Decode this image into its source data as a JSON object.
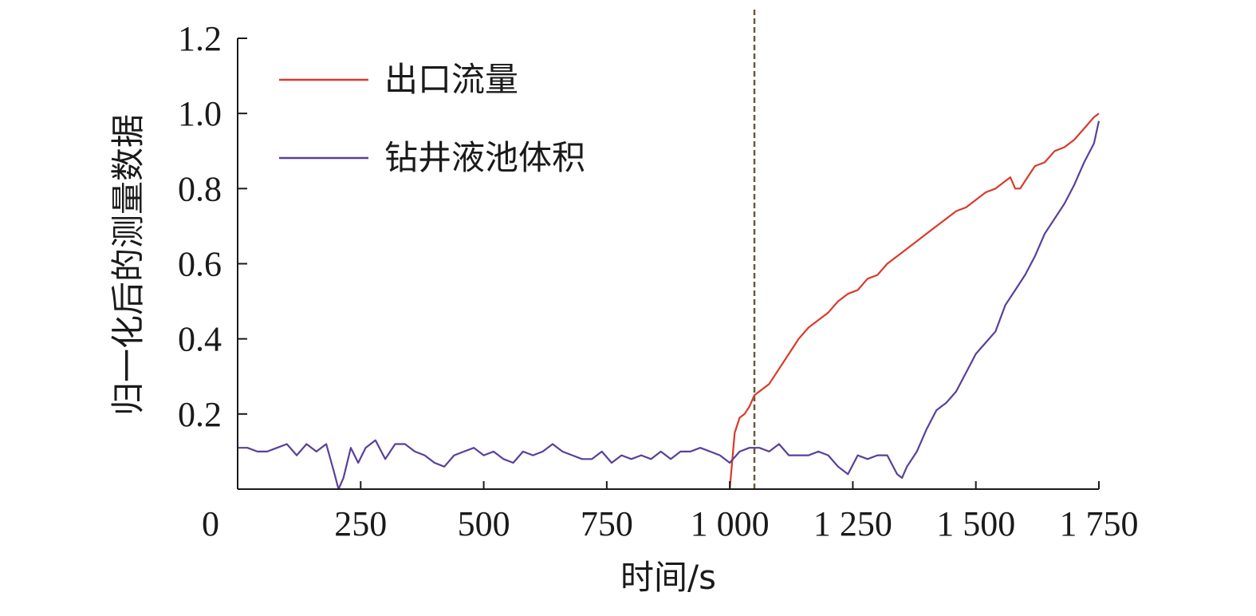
{
  "chart_data": {
    "type": "line",
    "title": "",
    "xlabel": "时间/s",
    "ylabel": "归一化后的测量数据",
    "xlim": [
      0,
      1750
    ],
    "ylim": [
      0,
      1.2
    ],
    "x_ticks": [
      0,
      250,
      500,
      750,
      1000,
      1250,
      1500,
      1750
    ],
    "x_tick_labels": [
      "0",
      "250",
      "500",
      "750",
      "1 000",
      "1 250",
      "1 500",
      "1 750"
    ],
    "y_ticks": [
      0.2,
      0.4,
      0.6,
      0.8,
      1.0,
      1.2
    ],
    "y_tick_labels": [
      "0.2",
      "0.4",
      "0.6",
      "0.8",
      "1.0",
      "1.2"
    ],
    "grid": false,
    "legend_position": "top-left",
    "vertical_marker_x": 1050,
    "vertical_marker_color": "#6b5a3a",
    "series": [
      {
        "name": "出口流量",
        "color": "#d93a2b",
        "x": [
          1000,
          1010,
          1020,
          1030,
          1040,
          1050,
          1060,
          1080,
          1100,
          1120,
          1140,
          1160,
          1180,
          1200,
          1220,
          1240,
          1260,
          1280,
          1300,
          1320,
          1340,
          1360,
          1380,
          1400,
          1420,
          1440,
          1460,
          1480,
          1500,
          1520,
          1540,
          1560,
          1570,
          1580,
          1590,
          1600,
          1620,
          1640,
          1660,
          1680,
          1700,
          1720,
          1740,
          1750
        ],
        "y": [
          0.0,
          0.15,
          0.19,
          0.2,
          0.22,
          0.25,
          0.26,
          0.28,
          0.32,
          0.36,
          0.4,
          0.43,
          0.45,
          0.47,
          0.5,
          0.52,
          0.53,
          0.56,
          0.57,
          0.6,
          0.62,
          0.64,
          0.66,
          0.68,
          0.7,
          0.72,
          0.74,
          0.75,
          0.77,
          0.79,
          0.8,
          0.82,
          0.83,
          0.8,
          0.8,
          0.82,
          0.86,
          0.87,
          0.9,
          0.91,
          0.93,
          0.96,
          0.99,
          1.0
        ]
      },
      {
        "name": "钻井液池体积",
        "color": "#5a3f9a",
        "x": [
          0,
          20,
          40,
          60,
          80,
          100,
          120,
          140,
          160,
          180,
          195,
          205,
          215,
          230,
          245,
          260,
          280,
          300,
          320,
          340,
          360,
          380,
          400,
          420,
          440,
          460,
          480,
          500,
          520,
          540,
          560,
          580,
          600,
          620,
          640,
          660,
          680,
          700,
          720,
          740,
          760,
          780,
          800,
          820,
          840,
          860,
          880,
          900,
          920,
          940,
          960,
          980,
          1000,
          1020,
          1040,
          1060,
          1080,
          1100,
          1120,
          1140,
          1160,
          1180,
          1200,
          1220,
          1240,
          1260,
          1280,
          1300,
          1320,
          1340,
          1350,
          1360,
          1380,
          1400,
          1420,
          1440,
          1460,
          1480,
          1500,
          1520,
          1540,
          1560,
          1580,
          1600,
          1620,
          1640,
          1660,
          1680,
          1700,
          1720,
          1740,
          1750
        ],
        "y": [
          0.11,
          0.11,
          0.1,
          0.1,
          0.11,
          0.12,
          0.09,
          0.12,
          0.1,
          0.12,
          0.05,
          0.0,
          0.03,
          0.11,
          0.07,
          0.11,
          0.13,
          0.08,
          0.12,
          0.12,
          0.1,
          0.09,
          0.07,
          0.06,
          0.09,
          0.1,
          0.11,
          0.09,
          0.1,
          0.08,
          0.07,
          0.1,
          0.09,
          0.1,
          0.12,
          0.1,
          0.09,
          0.08,
          0.08,
          0.1,
          0.07,
          0.09,
          0.08,
          0.09,
          0.08,
          0.1,
          0.08,
          0.1,
          0.1,
          0.11,
          0.1,
          0.09,
          0.07,
          0.1,
          0.11,
          0.11,
          0.1,
          0.12,
          0.09,
          0.09,
          0.09,
          0.1,
          0.09,
          0.06,
          0.04,
          0.09,
          0.08,
          0.09,
          0.09,
          0.04,
          0.03,
          0.06,
          0.1,
          0.16,
          0.21,
          0.23,
          0.26,
          0.31,
          0.36,
          0.39,
          0.42,
          0.49,
          0.53,
          0.57,
          0.62,
          0.68,
          0.72,
          0.76,
          0.81,
          0.87,
          0.92,
          0.98
        ]
      }
    ]
  }
}
